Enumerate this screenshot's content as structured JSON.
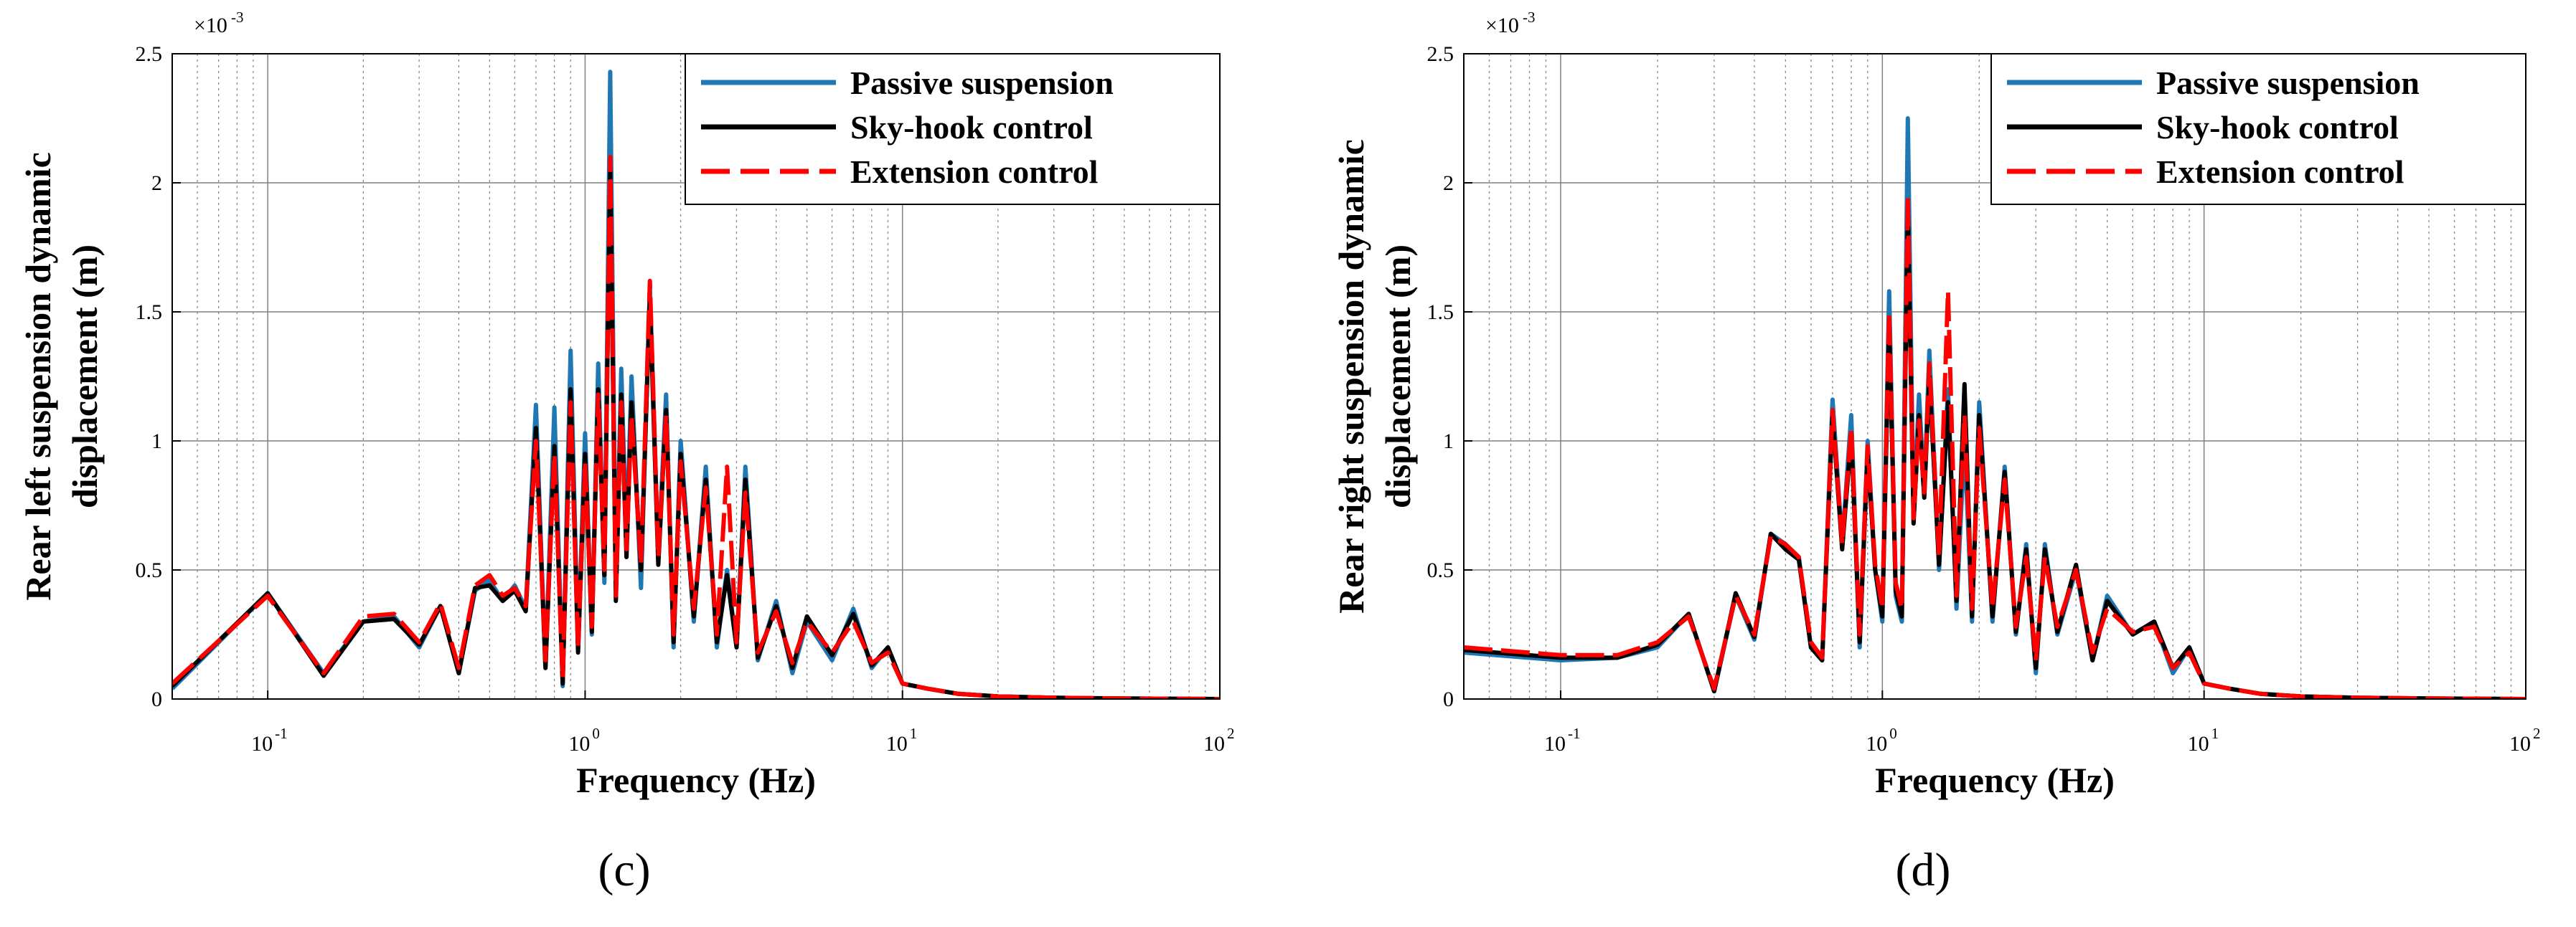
{
  "colors": {
    "passive": "#1f77b4",
    "skyhook": "#000000",
    "extension": "#ff0000",
    "grid": "#808080",
    "axis": "#000000"
  },
  "chart_data": [
    {
      "type": "line",
      "panel_label": "(c)",
      "xscale": "log",
      "xlabel": "Frequency (Hz)",
      "ylabel": "Rear left suspension dynamic displacement (m)",
      "ylabel_lines": [
        "Rear left suspension dynamic",
        "displacement (m)"
      ],
      "xlim": [
        0.05,
        100
      ],
      "ylim": [
        0,
        2.5
      ],
      "y_multiplier_text": "×10",
      "y_multiplier_exp": "-3",
      "yticks": [
        0,
        0.5,
        1,
        1.5,
        2,
        2.5
      ],
      "ytick_labels": [
        "0",
        "0.5",
        "1",
        "1.5",
        "2",
        "2.5"
      ],
      "xticks": [
        0.1,
        1,
        10,
        100
      ],
      "xtick_base": "10",
      "xtick_exps": [
        "-1",
        "0",
        "1",
        "2"
      ],
      "grid": true,
      "legend_position": "top-right",
      "series": [
        {
          "name": "Passive suspension",
          "color_key": "passive",
          "style": "solid",
          "x": [
            0.05,
            0.1,
            0.15,
            0.2,
            0.25,
            0.3,
            0.35,
            0.4,
            0.45,
            0.5,
            0.55,
            0.6,
            0.65,
            0.7,
            0.75,
            0.8,
            0.85,
            0.9,
            0.95,
            1.0,
            1.05,
            1.1,
            1.15,
            1.2,
            1.25,
            1.3,
            1.35,
            1.4,
            1.5,
            1.6,
            1.7,
            1.8,
            1.9,
            2.0,
            2.2,
            2.4,
            2.6,
            2.8,
            3.0,
            3.2,
            3.5,
            4.0,
            4.5,
            5.0,
            6.0,
            7.0,
            8.0,
            9.0,
            10,
            12,
            15,
            20,
            30,
            50,
            100
          ],
          "values": [
            0.04,
            0.41,
            0.1,
            0.3,
            0.32,
            0.2,
            0.36,
            0.1,
            0.42,
            0.46,
            0.38,
            0.44,
            0.35,
            1.14,
            0.12,
            1.13,
            0.05,
            1.35,
            0.2,
            1.03,
            0.25,
            1.3,
            0.45,
            2.43,
            0.4,
            1.28,
            0.6,
            1.25,
            0.43,
            1.6,
            0.55,
            1.18,
            0.2,
            1.0,
            0.3,
            0.9,
            0.2,
            0.5,
            0.2,
            0.9,
            0.15,
            0.38,
            0.1,
            0.3,
            0.15,
            0.35,
            0.12,
            0.2,
            0.06,
            0.04,
            0.02,
            0.01,
            0.005,
            0.002,
            0.0
          ]
        },
        {
          "name": "Sky-hook control",
          "color_key": "skyhook",
          "style": "solid",
          "x": [
            0.05,
            0.1,
            0.15,
            0.2,
            0.25,
            0.3,
            0.35,
            0.4,
            0.45,
            0.5,
            0.55,
            0.6,
            0.65,
            0.7,
            0.75,
            0.8,
            0.85,
            0.9,
            0.95,
            1.0,
            1.05,
            1.1,
            1.15,
            1.2,
            1.25,
            1.3,
            1.35,
            1.4,
            1.5,
            1.6,
            1.7,
            1.8,
            1.9,
            2.0,
            2.2,
            2.4,
            2.6,
            2.8,
            3.0,
            3.2,
            3.5,
            4.0,
            4.5,
            5.0,
            6.0,
            7.0,
            8.0,
            9.0,
            10,
            12,
            15,
            20,
            30,
            50,
            100
          ],
          "values": [
            0.05,
            0.41,
            0.09,
            0.3,
            0.31,
            0.21,
            0.36,
            0.1,
            0.43,
            0.44,
            0.38,
            0.42,
            0.34,
            1.05,
            0.12,
            0.98,
            0.06,
            1.2,
            0.18,
            0.95,
            0.26,
            1.2,
            0.48,
            2.05,
            0.38,
            1.18,
            0.55,
            1.15,
            0.5,
            1.55,
            0.52,
            1.12,
            0.22,
            0.95,
            0.32,
            0.85,
            0.22,
            0.48,
            0.2,
            0.85,
            0.16,
            0.36,
            0.12,
            0.32,
            0.17,
            0.33,
            0.13,
            0.2,
            0.06,
            0.04,
            0.02,
            0.01,
            0.005,
            0.002,
            0.0
          ]
        },
        {
          "name": "Extension control",
          "color_key": "extension",
          "style": "dashed",
          "x": [
            0.05,
            0.1,
            0.15,
            0.2,
            0.25,
            0.3,
            0.35,
            0.4,
            0.45,
            0.5,
            0.55,
            0.6,
            0.65,
            0.7,
            0.75,
            0.8,
            0.85,
            0.9,
            0.95,
            1.0,
            1.05,
            1.1,
            1.15,
            1.2,
            1.25,
            1.3,
            1.35,
            1.4,
            1.5,
            1.6,
            1.7,
            1.8,
            1.9,
            2.0,
            2.2,
            2.4,
            2.6,
            2.8,
            3.0,
            3.2,
            3.5,
            4.0,
            4.5,
            5.0,
            6.0,
            7.0,
            8.0,
            9.0,
            10,
            12,
            15,
            20,
            30,
            50,
            100
          ],
          "values": [
            0.06,
            0.4,
            0.1,
            0.32,
            0.33,
            0.22,
            0.37,
            0.12,
            0.44,
            0.48,
            0.4,
            0.43,
            0.36,
            1.0,
            0.15,
            0.95,
            0.08,
            1.15,
            0.2,
            0.92,
            0.28,
            1.18,
            0.5,
            2.1,
            0.4,
            1.15,
            0.58,
            1.1,
            0.52,
            1.62,
            0.55,
            1.1,
            0.25,
            0.92,
            0.35,
            0.82,
            0.25,
            0.9,
            0.22,
            0.8,
            0.18,
            0.34,
            0.14,
            0.3,
            0.18,
            0.3,
            0.14,
            0.18,
            0.06,
            0.04,
            0.02,
            0.01,
            0.005,
            0.002,
            0.0
          ]
        }
      ]
    },
    {
      "type": "line",
      "panel_label": "(d)",
      "xscale": "log",
      "xlabel": "Frequency (Hz)",
      "ylabel": "Rear right suspension dynamic displacement (m)",
      "ylabel_lines": [
        "Rear right suspension dynamic",
        "displacement (m)"
      ],
      "xlim": [
        0.05,
        100
      ],
      "ylim": [
        0,
        2.5
      ],
      "y_multiplier_text": "×10",
      "y_multiplier_exp": "-3",
      "yticks": [
        0,
        0.5,
        1,
        1.5,
        2,
        2.5
      ],
      "ytick_labels": [
        "0",
        "0.5",
        "1",
        "1.5",
        "2",
        "2.5"
      ],
      "xticks": [
        0.1,
        1,
        10,
        100
      ],
      "xtick_base": "10",
      "xtick_exps": [
        "-1",
        "0",
        "1",
        "2"
      ],
      "grid": true,
      "legend_position": "top-right",
      "series": [
        {
          "name": "Passive suspension",
          "color_key": "passive",
          "style": "solid",
          "x": [
            0.05,
            0.1,
            0.15,
            0.2,
            0.25,
            0.3,
            0.35,
            0.4,
            0.45,
            0.5,
            0.55,
            0.6,
            0.65,
            0.7,
            0.75,
            0.8,
            0.85,
            0.9,
            0.95,
            1.0,
            1.05,
            1.1,
            1.15,
            1.2,
            1.25,
            1.3,
            1.35,
            1.4,
            1.5,
            1.6,
            1.7,
            1.8,
            1.9,
            2.0,
            2.2,
            2.4,
            2.6,
            2.8,
            3.0,
            3.2,
            3.5,
            4.0,
            4.5,
            5.0,
            6.0,
            7.0,
            8.0,
            9.0,
            10,
            12,
            15,
            20,
            30,
            50,
            100
          ],
          "values": [
            0.18,
            0.15,
            0.16,
            0.2,
            0.33,
            0.03,
            0.4,
            0.23,
            0.64,
            0.6,
            0.55,
            0.2,
            0.15,
            1.16,
            0.6,
            1.1,
            0.2,
            1.0,
            0.5,
            0.3,
            1.58,
            0.4,
            0.3,
            2.25,
            0.7,
            1.18,
            0.8,
            1.35,
            0.5,
            1.2,
            0.35,
            1.0,
            0.3,
            1.15,
            0.3,
            0.9,
            0.25,
            0.6,
            0.1,
            0.6,
            0.25,
            0.5,
            0.15,
            0.4,
            0.25,
            0.3,
            0.1,
            0.2,
            0.06,
            0.04,
            0.02,
            0.01,
            0.005,
            0.002,
            0.0
          ]
        },
        {
          "name": "Sky-hook control",
          "color_key": "skyhook",
          "style": "solid",
          "x": [
            0.05,
            0.1,
            0.15,
            0.2,
            0.25,
            0.3,
            0.35,
            0.4,
            0.45,
            0.5,
            0.55,
            0.6,
            0.65,
            0.7,
            0.75,
            0.8,
            0.85,
            0.9,
            0.95,
            1.0,
            1.05,
            1.1,
            1.15,
            1.2,
            1.25,
            1.3,
            1.35,
            1.4,
            1.5,
            1.6,
            1.7,
            1.8,
            1.9,
            2.0,
            2.2,
            2.4,
            2.6,
            2.8,
            3.0,
            3.2,
            3.5,
            4.0,
            4.5,
            5.0,
            6.0,
            7.0,
            8.0,
            9.0,
            10,
            12,
            15,
            20,
            30,
            50,
            100
          ],
          "values": [
            0.19,
            0.16,
            0.16,
            0.21,
            0.33,
            0.03,
            0.41,
            0.24,
            0.64,
            0.58,
            0.54,
            0.2,
            0.15,
            1.1,
            0.58,
            1.02,
            0.22,
            0.95,
            0.5,
            0.32,
            1.45,
            0.42,
            0.32,
            1.9,
            0.68,
            1.1,
            0.78,
            1.25,
            0.52,
            1.15,
            0.38,
            1.22,
            0.32,
            1.1,
            0.32,
            0.88,
            0.26,
            0.58,
            0.12,
            0.58,
            0.26,
            0.52,
            0.15,
            0.38,
            0.25,
            0.3,
            0.12,
            0.2,
            0.06,
            0.04,
            0.02,
            0.01,
            0.005,
            0.002,
            0.0
          ]
        },
        {
          "name": "Extension control",
          "color_key": "extension",
          "style": "dashed",
          "x": [
            0.05,
            0.1,
            0.15,
            0.2,
            0.25,
            0.3,
            0.35,
            0.4,
            0.45,
            0.5,
            0.55,
            0.6,
            0.65,
            0.7,
            0.75,
            0.8,
            0.85,
            0.9,
            0.95,
            1.0,
            1.05,
            1.1,
            1.15,
            1.2,
            1.25,
            1.3,
            1.35,
            1.4,
            1.5,
            1.6,
            1.7,
            1.8,
            1.9,
            2.0,
            2.2,
            2.4,
            2.6,
            2.8,
            3.0,
            3.2,
            3.5,
            4.0,
            4.5,
            5.0,
            6.0,
            7.0,
            8.0,
            9.0,
            10,
            12,
            15,
            20,
            30,
            50,
            100
          ],
          "values": [
            0.2,
            0.17,
            0.17,
            0.22,
            0.32,
            0.04,
            0.4,
            0.25,
            0.63,
            0.6,
            0.55,
            0.22,
            0.16,
            1.12,
            0.6,
            1.05,
            0.25,
            0.98,
            0.52,
            0.35,
            1.5,
            0.45,
            0.35,
            1.95,
            0.7,
            1.08,
            0.8,
            1.3,
            0.55,
            1.58,
            0.4,
            1.1,
            0.35,
            1.05,
            0.35,
            0.85,
            0.28,
            0.55,
            0.15,
            0.55,
            0.28,
            0.5,
            0.18,
            0.35,
            0.26,
            0.28,
            0.12,
            0.18,
            0.06,
            0.04,
            0.02,
            0.01,
            0.005,
            0.002,
            0.0
          ]
        }
      ]
    }
  ]
}
